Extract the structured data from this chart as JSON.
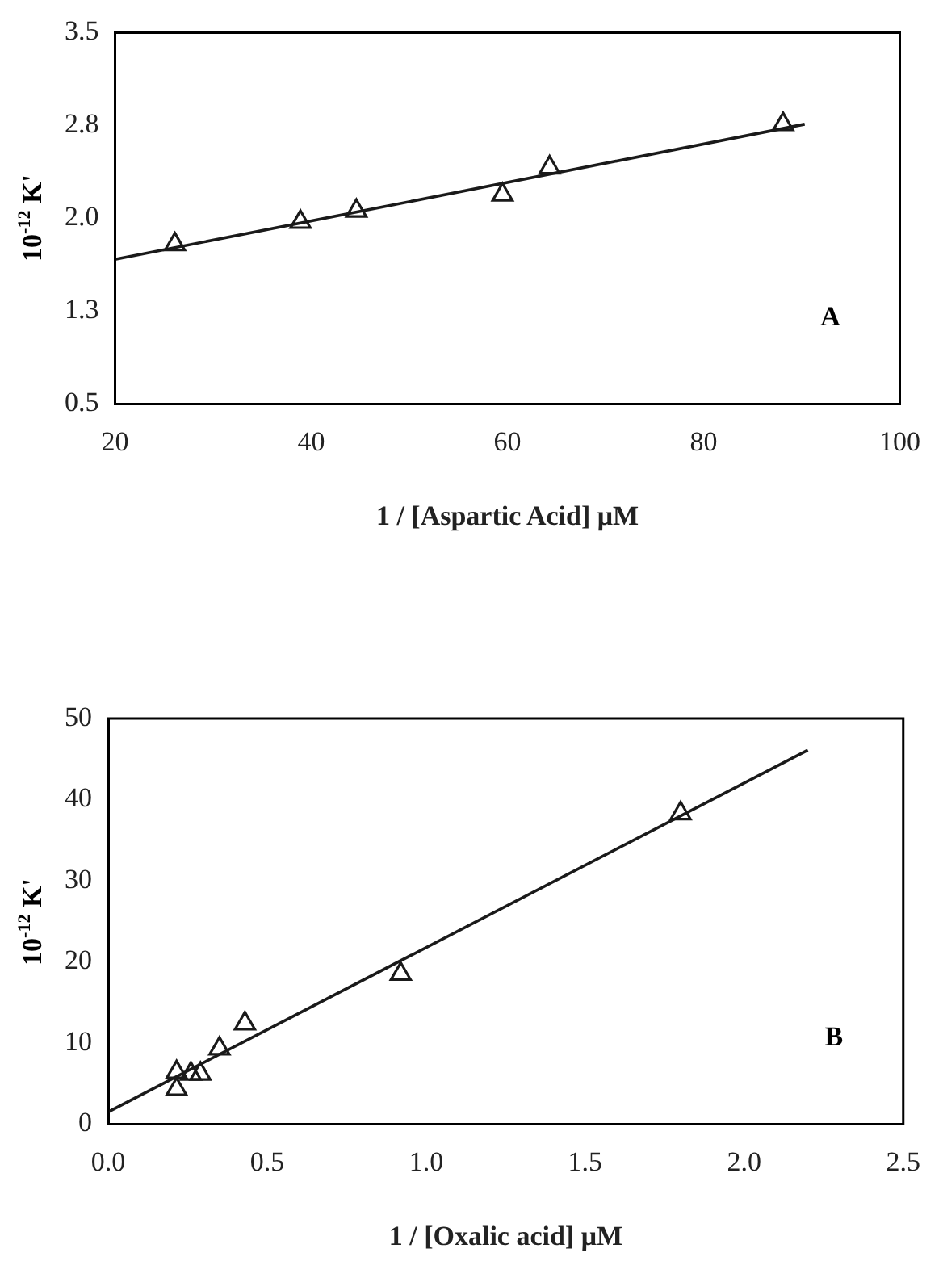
{
  "chart_data": [
    {
      "type": "scatter",
      "xlabel": "1 / [Aspartic Acid] μM",
      "ylabel": "10$^{-12}$ K'",
      "annotations": [
        "A"
      ],
      "xlim": [
        20,
        100
      ],
      "xticks": [
        20,
        40,
        60,
        80,
        100
      ],
      "ylim": [
        0.5,
        3.5
      ],
      "yticks": [
        0.5,
        {
          "value": 1.25,
          "label": "1.3"
        },
        {
          "value": 2,
          "label": "2.0"
        },
        {
          "value": 2.75,
          "label": "2.8"
        },
        3.5
      ],
      "grid": false,
      "legend": false,
      "marker": "triangle",
      "series": [
        {
          "type": "scatter",
          "color": "#1a1a1a",
          "x": [
            26.1,
            38.9,
            44.6,
            59.5,
            64.3,
            88.1
          ],
          "values": [
            1.79,
            1.97,
            2.06,
            2.19,
            2.41,
            2.76
          ]
        },
        {
          "type": "line",
          "color": "#1a1a1a",
          "marker": "none",
          "x": [
            20.1,
            90.3
          ],
          "values": [
            1.67,
            2.76
          ]
        }
      ]
    },
    {
      "type": "scatter",
      "xlabel": "1 / [Oxalic acid] μM",
      "ylabel": "10$^{-12}$ K'",
      "annotations": [
        "B"
      ],
      "xlim": [
        0,
        2.5
      ],
      "xticks": [
        {
          "value": 0,
          "label": "0.0"
        },
        0.5,
        {
          "value": 1,
          "label": "1.0"
        },
        1.5,
        {
          "value": 2,
          "label": "2.0"
        },
        2.5
      ],
      "ylim": [
        0,
        50
      ],
      "yticks": [
        0,
        10,
        20,
        30,
        40,
        50
      ],
      "grid": false,
      "legend": false,
      "marker": "triangle",
      "series": [
        {
          "type": "scatter",
          "color": "#1a1a1a",
          "x": [
            0.215,
            0.215,
            0.26,
            0.29,
            0.35,
            0.43,
            0.92,
            1.8
          ],
          "values": [
            4.3,
            6.4,
            6.2,
            6.2,
            9.3,
            12.4,
            18.5,
            38.3
          ]
        },
        {
          "type": "line",
          "color": "#1a1a1a",
          "marker": "none",
          "x": [
            0,
            2.2
          ],
          "values": [
            1.5,
            46.1
          ]
        }
      ]
    }
  ]
}
